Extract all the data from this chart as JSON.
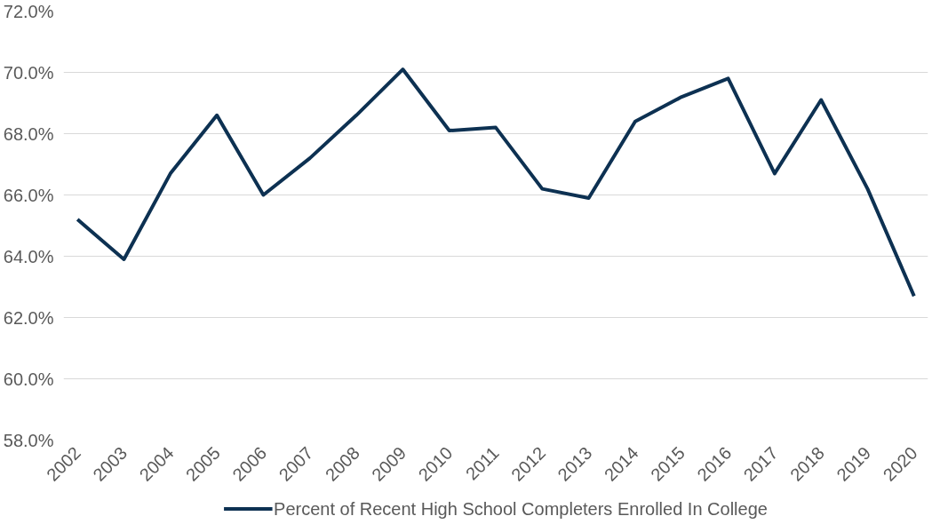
{
  "chart_data": {
    "type": "line",
    "categories": [
      "2002",
      "2003",
      "2004",
      "2005",
      "2006",
      "2007",
      "2008",
      "2009",
      "2010",
      "2011",
      "2012",
      "2013",
      "2014",
      "2015",
      "2016",
      "2017",
      "2018",
      "2019",
      "2020"
    ],
    "series": [
      {
        "name": "Percent of Recent High School Completers Enrolled In College",
        "color": "#0d3152",
        "values": [
          65.2,
          63.9,
          66.7,
          68.6,
          66.0,
          67.2,
          68.6,
          70.1,
          68.1,
          68.2,
          66.2,
          65.9,
          68.4,
          69.2,
          69.8,
          66.7,
          69.1,
          66.2,
          62.7
        ]
      }
    ],
    "ylim": [
      58,
      72
    ],
    "yticks": [
      {
        "value": 58,
        "label": "58.0%"
      },
      {
        "value": 60,
        "label": "60.0%"
      },
      {
        "value": 62,
        "label": "62.0%"
      },
      {
        "value": 64,
        "label": "64.0%"
      },
      {
        "value": 66,
        "label": "66.0%"
      },
      {
        "value": 68,
        "label": "68.0%"
      },
      {
        "value": 70,
        "label": "70.0%"
      },
      {
        "value": 72,
        "label": "72.0%"
      }
    ],
    "grid": "y",
    "legend": "bottom",
    "line_style": "solid",
    "marker": "none"
  }
}
